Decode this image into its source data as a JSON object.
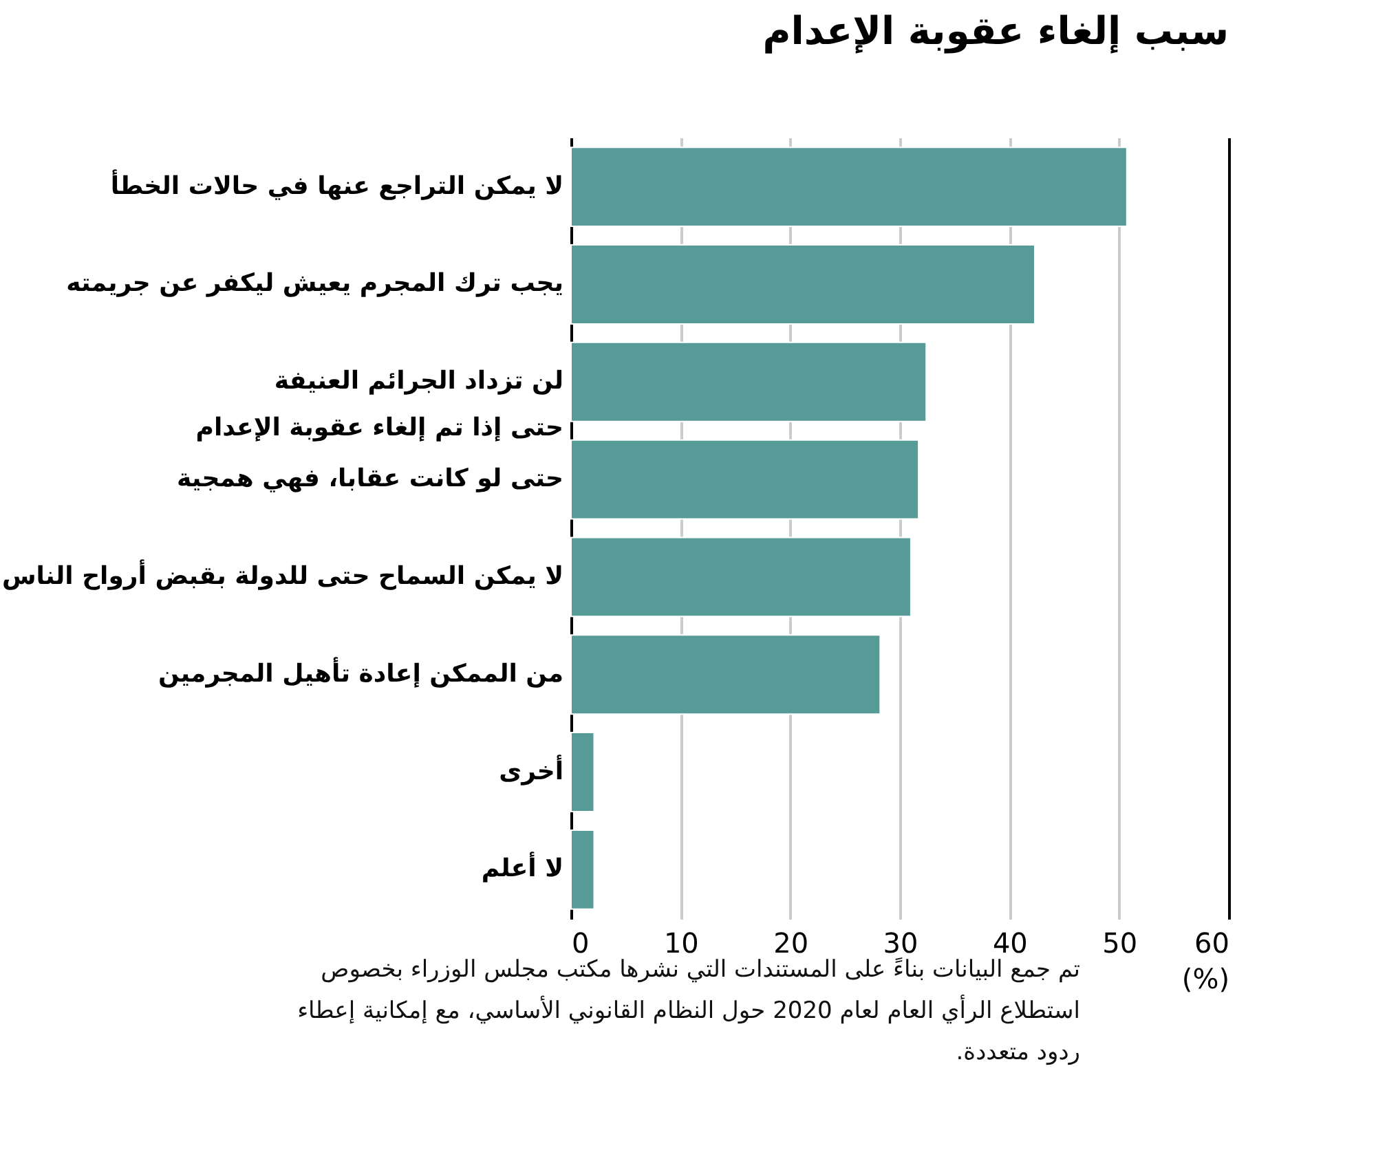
{
  "chart_data": {
    "type": "bar",
    "orientation": "horizontal",
    "title": "سبب إلغاء عقوبة الإعدام",
    "categories": [
      "لا يمكن التراجع عنها في حالات الخطأ",
      "يجب ترك المجرم يعيش ليكفر عن جريمته",
      "لن تزداد الجرائم العنيفة\nحتى إذا تم إلغاء عقوبة الإعدام",
      "حتى لو كانت عقابا، فهي همجية",
      "لا يمكن السماح حتى للدولة بقبض أرواح الناس",
      "من الممكن إعادة تأهيل المجرمين",
      "أخرى",
      "لا أعلم"
    ],
    "values": [
      50.7,
      42.3,
      32.4,
      31.7,
      31.0,
      28.2,
      2.1,
      2.1
    ],
    "color": "#579b98",
    "xlabel": "(%)",
    "xlim": [
      0,
      60
    ],
    "xticks": [
      0,
      10,
      20,
      30,
      40,
      50,
      60
    ],
    "grid": "x",
    "annotations": [
      "تم جمع البيانات بناءً على المستندات التي نشرها مكتب مجلس الوزراء بخصوص استطلاع الرأي العام لعام 2020 حول النظام القانوني الأساسي، مع إمكانية إعطاء ردود متعددة."
    ]
  }
}
